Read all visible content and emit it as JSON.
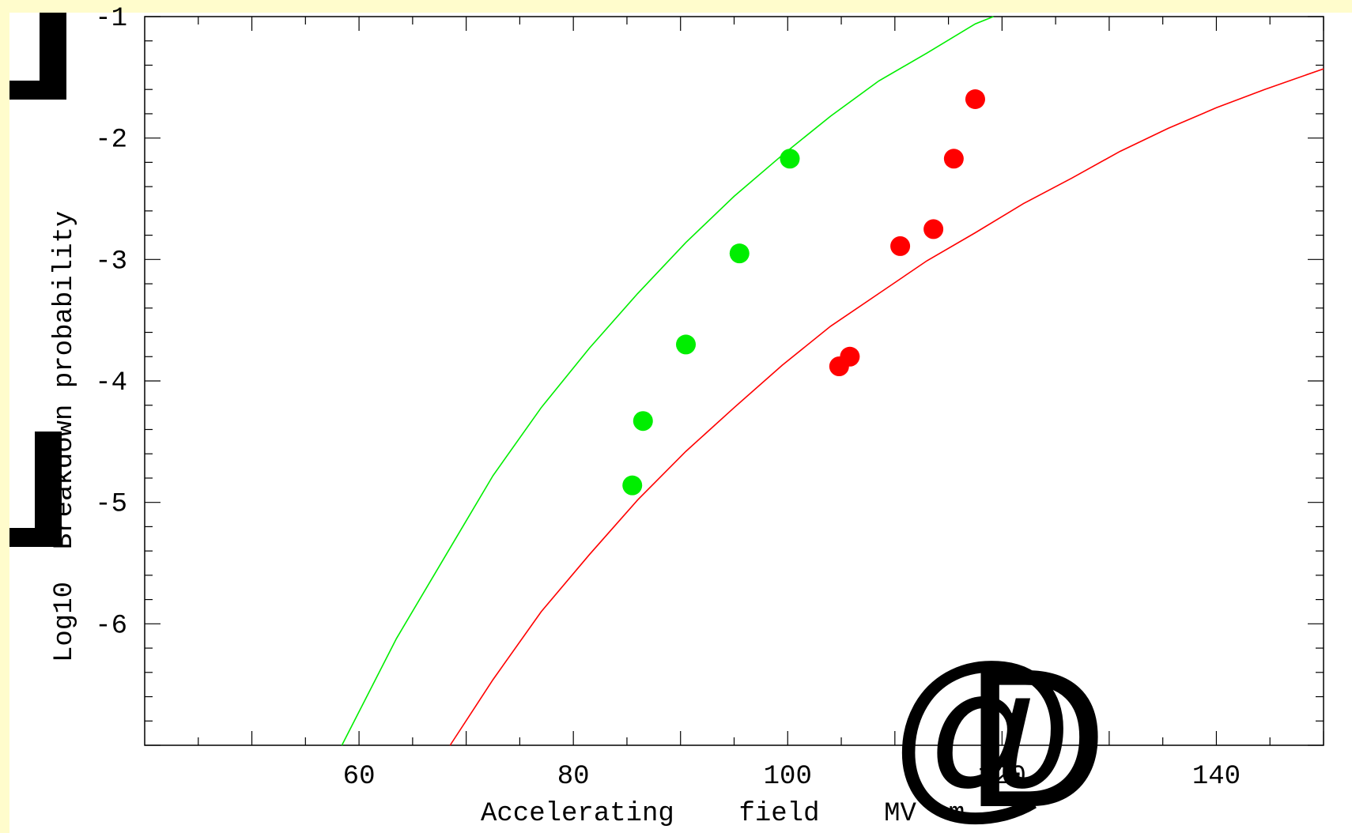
{
  "chart_data": {
    "type": "scatter",
    "xlabel": "Accelerating    field    MV  m",
    "ylabel": "Log10  Breakdown probability",
    "xlim": [
      40,
      150
    ],
    "ylim": [
      -7,
      -1
    ],
    "x_ticks": [
      60,
      80,
      100,
      120,
      140
    ],
    "x_tick_labels": [
      "60",
      "80",
      "100",
      "120",
      "140"
    ],
    "y_ticks": [
      -1,
      -2,
      -3,
      -4,
      -5,
      -6
    ],
    "y_tick_labels": [
      "-1",
      "-2",
      "-3",
      "-4",
      "-5",
      "-6"
    ],
    "grid": false,
    "series": [
      {
        "kind": "points",
        "color": "#00ee00",
        "x": [
          85.5,
          86.5,
          90.5,
          95.5,
          100.2
        ],
        "y": [
          -4.86,
          -4.33,
          -3.7,
          -2.95,
          -2.17
        ]
      },
      {
        "kind": "points",
        "color": "#ff0000",
        "x": [
          104.8,
          105.8,
          110.5,
          113.6,
          115.5,
          117.5
        ],
        "y": [
          -3.88,
          -3.8,
          -2.89,
          -2.75,
          -2.17,
          -1.68
        ]
      },
      {
        "kind": "line",
        "color": "#00ee00",
        "x": [
          58.4,
          63.5,
          68.0,
          72.5,
          77.0,
          81.5,
          86.0,
          90.5,
          95.0,
          99.5,
          104.0,
          108.5,
          113.0,
          117.5,
          119.2
        ],
        "y": [
          -7.0,
          -6.12,
          -5.45,
          -4.78,
          -4.22,
          -3.73,
          -3.28,
          -2.86,
          -2.48,
          -2.14,
          -1.82,
          -1.53,
          -1.3,
          -1.06,
          -1.0
        ]
      },
      {
        "kind": "line",
        "color": "#ff0000",
        "x": [
          68.5,
          72.5,
          77.0,
          81.5,
          86.0,
          90.5,
          95.0,
          99.5,
          104.0,
          108.5,
          113.0,
          117.5,
          122.0,
          126.5,
          131.0,
          135.5,
          140.0,
          144.5,
          150.0
        ],
        "y": [
          -7.0,
          -6.46,
          -5.9,
          -5.43,
          -4.98,
          -4.58,
          -4.22,
          -3.87,
          -3.55,
          -3.28,
          -3.01,
          -2.78,
          -2.54,
          -2.33,
          -2.11,
          -1.92,
          -1.75,
          -1.6,
          -1.43
        ]
      }
    ]
  },
  "overlay": {
    "glyph_at": "@",
    "glyph_d": "D"
  },
  "colors": {
    "frame": "#000000",
    "side_strip": "#fffccc"
  }
}
